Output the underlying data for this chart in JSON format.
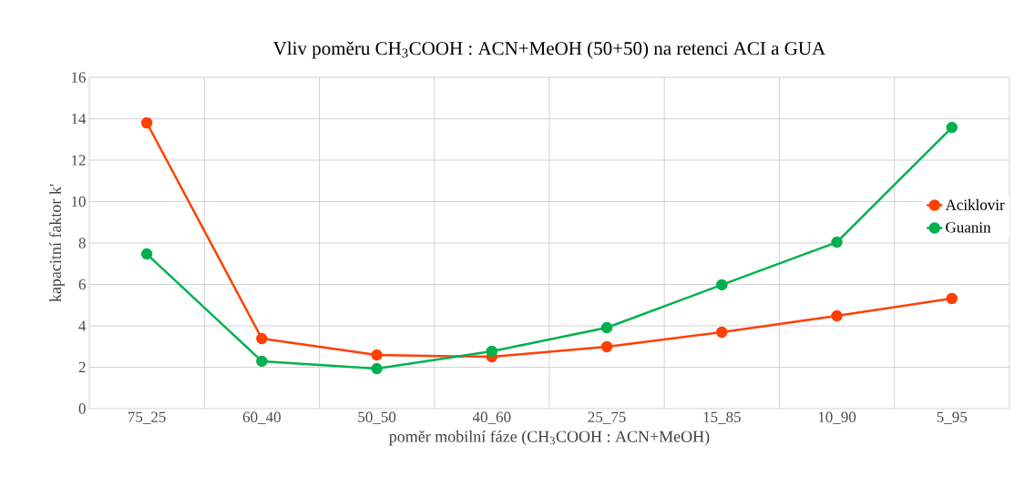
{
  "chart_data": {
    "type": "line",
    "title": "Vliv poměru CH$_{3}$COOH : ACN+MeOH (50+50) na retenci ACI a GUA",
    "xlabel": "poměr mobilní fáze (CH$_{3}$COOH : ACN+MeOH)",
    "ylabel": "kapacitní faktor k'",
    "categories": [
      "75_25",
      "60_40",
      "50_50",
      "40_60",
      "25_75",
      "15_85",
      "10_90",
      "5_95"
    ],
    "series": [
      {
        "name": "Aciklovir",
        "color": "#ff4000",
        "values": [
          13.8,
          3.38,
          2.59,
          2.5,
          2.99,
          3.69,
          4.48,
          5.32
        ]
      },
      {
        "name": "Guanin",
        "color": "#00b050",
        "values": [
          7.47,
          2.29,
          1.93,
          2.77,
          3.91,
          5.98,
          8.04,
          13.58
        ]
      }
    ],
    "ylim": [
      0,
      16
    ],
    "yticks": [
      0,
      2,
      4,
      6,
      8,
      10,
      12,
      14,
      16
    ],
    "grid": true,
    "legend": "right",
    "marker": "circle",
    "line_style": "solid"
  }
}
